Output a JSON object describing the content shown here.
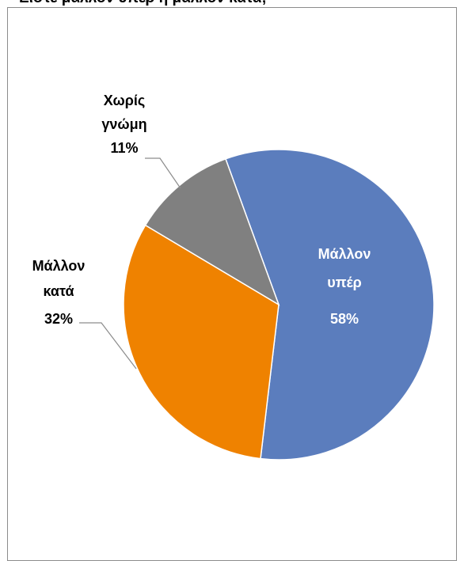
{
  "chart_data": {
    "type": "pie",
    "title": "Είστε μάλλον υπέρ ή μάλλον κατά;",
    "slices": [
      {
        "name": "Μάλλον υπέρ",
        "label_lines": [
          "Μάλλον",
          "υπέρ"
        ],
        "percent_label": "58%",
        "value": 58,
        "color": "#5b7dbd",
        "label_color": "#ffffff",
        "label_placement": "inside"
      },
      {
        "name": "Μάλλον κατά",
        "label_lines": [
          "Μάλλον",
          "κατά"
        ],
        "percent_label": "32%",
        "value": 32,
        "color": "#ef8200",
        "label_color": "#000000",
        "label_placement": "outside-left"
      },
      {
        "name": "Χωρίς γνώμη",
        "label_lines": [
          "Χωρίς",
          "γνώμη"
        ],
        "percent_label": "11%",
        "value": 11,
        "color": "#808080",
        "label_color": "#000000",
        "label_placement": "outside-top-left"
      }
    ],
    "legend": "none"
  }
}
